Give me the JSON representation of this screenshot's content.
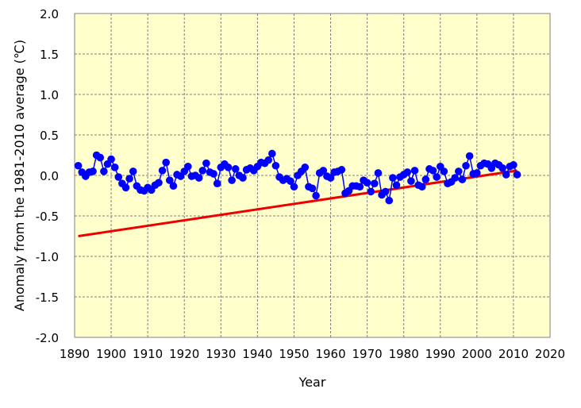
{
  "chart_data": {
    "type": "line",
    "title": "",
    "xlabel": "Year",
    "ylabel": "Anomaly from  the 1981-2010 average (℃)",
    "xlim": [
      1890,
      2020
    ],
    "ylim": [
      -2.0,
      2.0
    ],
    "x_ticks": [
      1890,
      1900,
      1910,
      1920,
      1930,
      1940,
      1950,
      1960,
      1970,
      1980,
      1990,
      2000,
      2010,
      2020
    ],
    "y_ticks": [
      -2.0,
      -1.5,
      -1.0,
      -0.5,
      0.0,
      0.5,
      1.0,
      1.5,
      2.0
    ],
    "y_tick_labels": [
      "-2.0",
      "-1.5",
      "-1.0",
      "-0.5",
      "0.0",
      "0.5",
      "1.0",
      "1.5",
      "2.0"
    ],
    "x_tick_labels": [
      "1890",
      "1900",
      "1910",
      "1920",
      "1930",
      "1940",
      "1950",
      "1960",
      "1970",
      "1980",
      "1990",
      "2000",
      "2010",
      "2020"
    ],
    "grid": true,
    "colors": {
      "plot_background": "#ffffcc",
      "series": "#0000ff",
      "trend": "#ee0000",
      "grid": "#808080"
    },
    "series": [
      {
        "x": [
          1891,
          1892,
          1893,
          1894,
          1895,
          1896,
          1897,
          1898,
          1899,
          1900,
          1901,
          1902,
          1903,
          1904,
          1905,
          1906,
          1907,
          1908,
          1909,
          1910,
          1911,
          1912,
          1913,
          1914,
          1915,
          1916,
          1917,
          1918,
          1919,
          1920,
          1921,
          1922,
          1923,
          1924,
          1925,
          1926,
          1927,
          1928,
          1929,
          1930,
          1931,
          1932,
          1933,
          1934,
          1935,
          1936,
          1937,
          1938,
          1939,
          1940,
          1941,
          1942,
          1943,
          1944,
          1945,
          1946,
          1947,
          1948,
          1949,
          1950,
          1951,
          1952,
          1953,
          1954,
          1955,
          1956,
          1957,
          1958,
          1959,
          1960,
          1961,
          1962,
          1963,
          1964,
          1965,
          1966,
          1967,
          1968,
          1969,
          1970,
          1971,
          1972,
          1973,
          1974,
          1975,
          1976,
          1977,
          1978,
          1979,
          1980,
          1981,
          1982,
          1983,
          1984,
          1985,
          1986,
          1987,
          1988,
          1989,
          1990,
          1991,
          1992,
          1993,
          1994,
          1995,
          1996,
          1997,
          1998,
          1999,
          2000,
          2001,
          2002,
          2003,
          2004,
          2005,
          2006,
          2007,
          2008,
          2009,
          2010,
          2011
        ],
        "values": [
          0.12,
          0.04,
          -0.01,
          0.04,
          0.05,
          0.25,
          0.22,
          0.05,
          0.14,
          0.2,
          0.1,
          -0.02,
          -0.1,
          -0.15,
          -0.04,
          0.05,
          -0.13,
          -0.18,
          -0.19,
          -0.15,
          -0.18,
          -0.12,
          -0.09,
          0.06,
          0.16,
          -0.06,
          -0.13,
          0.01,
          -0.01,
          0.05,
          0.11,
          -0.01,
          0.0,
          -0.03,
          0.06,
          0.15,
          0.04,
          0.02,
          -0.1,
          0.1,
          0.14,
          0.1,
          -0.06,
          0.08,
          0.0,
          -0.03,
          0.07,
          0.09,
          0.06,
          0.11,
          0.16,
          0.15,
          0.19,
          0.27,
          0.12,
          -0.02,
          -0.06,
          -0.04,
          -0.07,
          -0.14,
          0.0,
          0.05,
          0.1,
          -0.14,
          -0.16,
          -0.25,
          0.03,
          0.06,
          -0.01,
          -0.03,
          0.04,
          0.05,
          0.07,
          -0.22,
          -0.19,
          -0.13,
          -0.13,
          -0.14,
          -0.06,
          -0.09,
          -0.2,
          -0.1,
          0.03,
          -0.24,
          -0.2,
          -0.31,
          -0.03,
          -0.12,
          -0.02,
          0.01,
          0.04,
          -0.07,
          0.06,
          -0.12,
          -0.14,
          -0.05,
          0.08,
          0.06,
          -0.02,
          0.11,
          0.05,
          -0.1,
          -0.08,
          -0.03,
          0.05,
          -0.05,
          0.12,
          0.24,
          0.02,
          0.03,
          0.12,
          0.15,
          0.14,
          0.09,
          0.15,
          0.13,
          0.09,
          0.01,
          0.11,
          0.13,
          0.01
        ]
      },
      {
        "x": [
          1891,
          2011
        ],
        "values": [
          -0.75,
          0.06
        ]
      }
    ]
  }
}
